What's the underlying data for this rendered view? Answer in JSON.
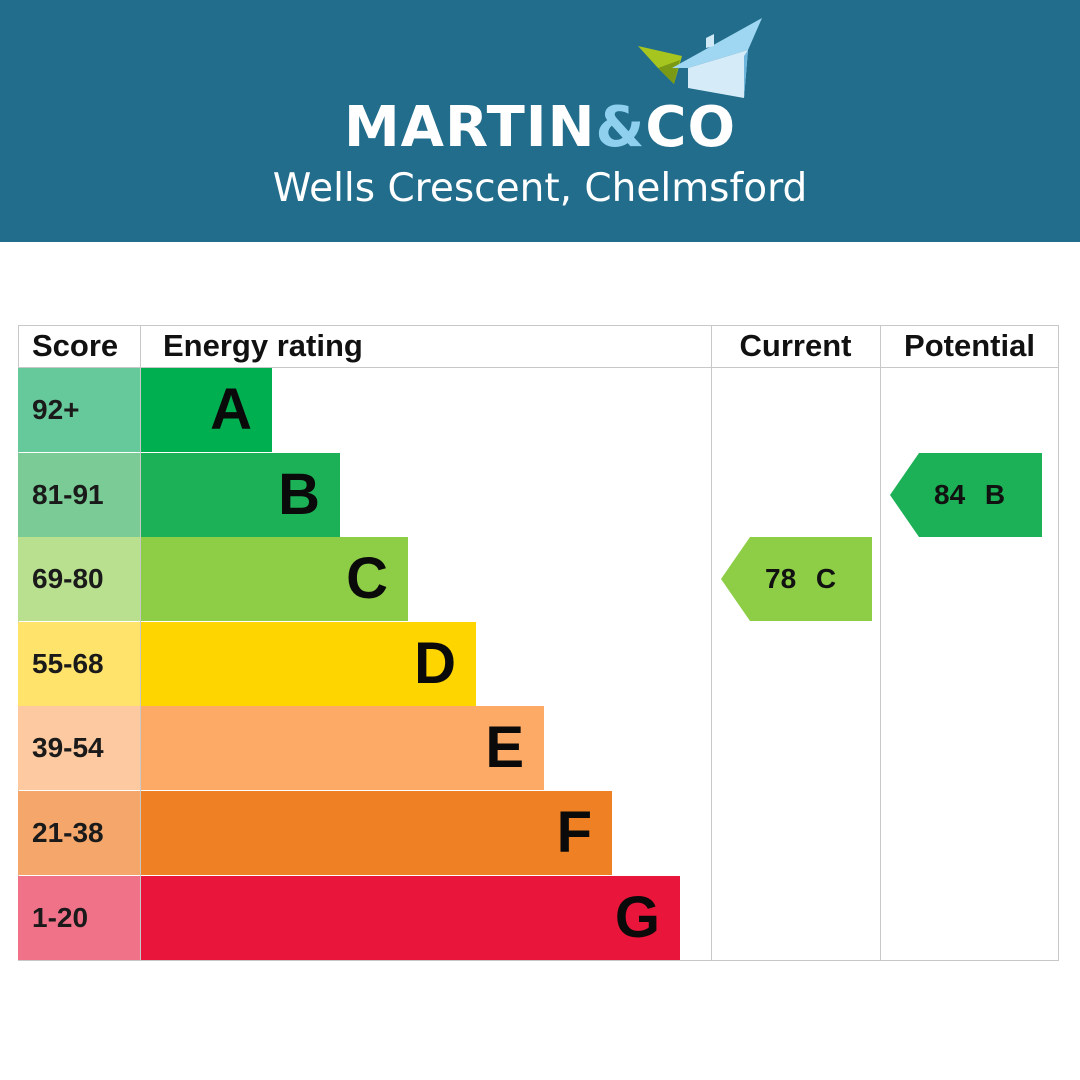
{
  "header": {
    "brand": {
      "part1": "MARTIN",
      "amp": "&",
      "part2": "CO"
    },
    "location": "Wells Crescent, Chelmsford",
    "background_color": "#216d8b",
    "icon": "house-roof-logo-icon"
  },
  "epc": {
    "columns": {
      "score": "Score",
      "energy_rating": "Energy rating",
      "current": "Current",
      "potential": "Potential"
    },
    "bands": [
      {
        "score": "92+",
        "letter": "A",
        "band_color": "#00b050",
        "score_color": "#66c99b"
      },
      {
        "score": "81-91",
        "letter": "B",
        "band_color": "#1cb156",
        "score_color": "#7acb95"
      },
      {
        "score": "69-80",
        "letter": "C",
        "band_color": "#8dce46",
        "score_color": "#b8e08e"
      },
      {
        "score": "55-68",
        "letter": "D",
        "band_color": "#ffd500",
        "score_color": "#ffe36b"
      },
      {
        "score": "39-54",
        "letter": "E",
        "band_color": "#fcaa65",
        "score_color": "#fdc9a0"
      },
      {
        "score": "21-38",
        "letter": "F",
        "band_color": "#ef8023",
        "score_color": "#f4a66b"
      },
      {
        "score": "1-20",
        "letter": "G",
        "band_color": "#e9153b",
        "score_color": "#f07289"
      }
    ],
    "current": {
      "value": "78",
      "letter": "C",
      "label": "78 C",
      "color": "#8dce46"
    },
    "potential": {
      "value": "84",
      "letter": "B",
      "label": "84 B",
      "color": "#1cb156"
    }
  }
}
